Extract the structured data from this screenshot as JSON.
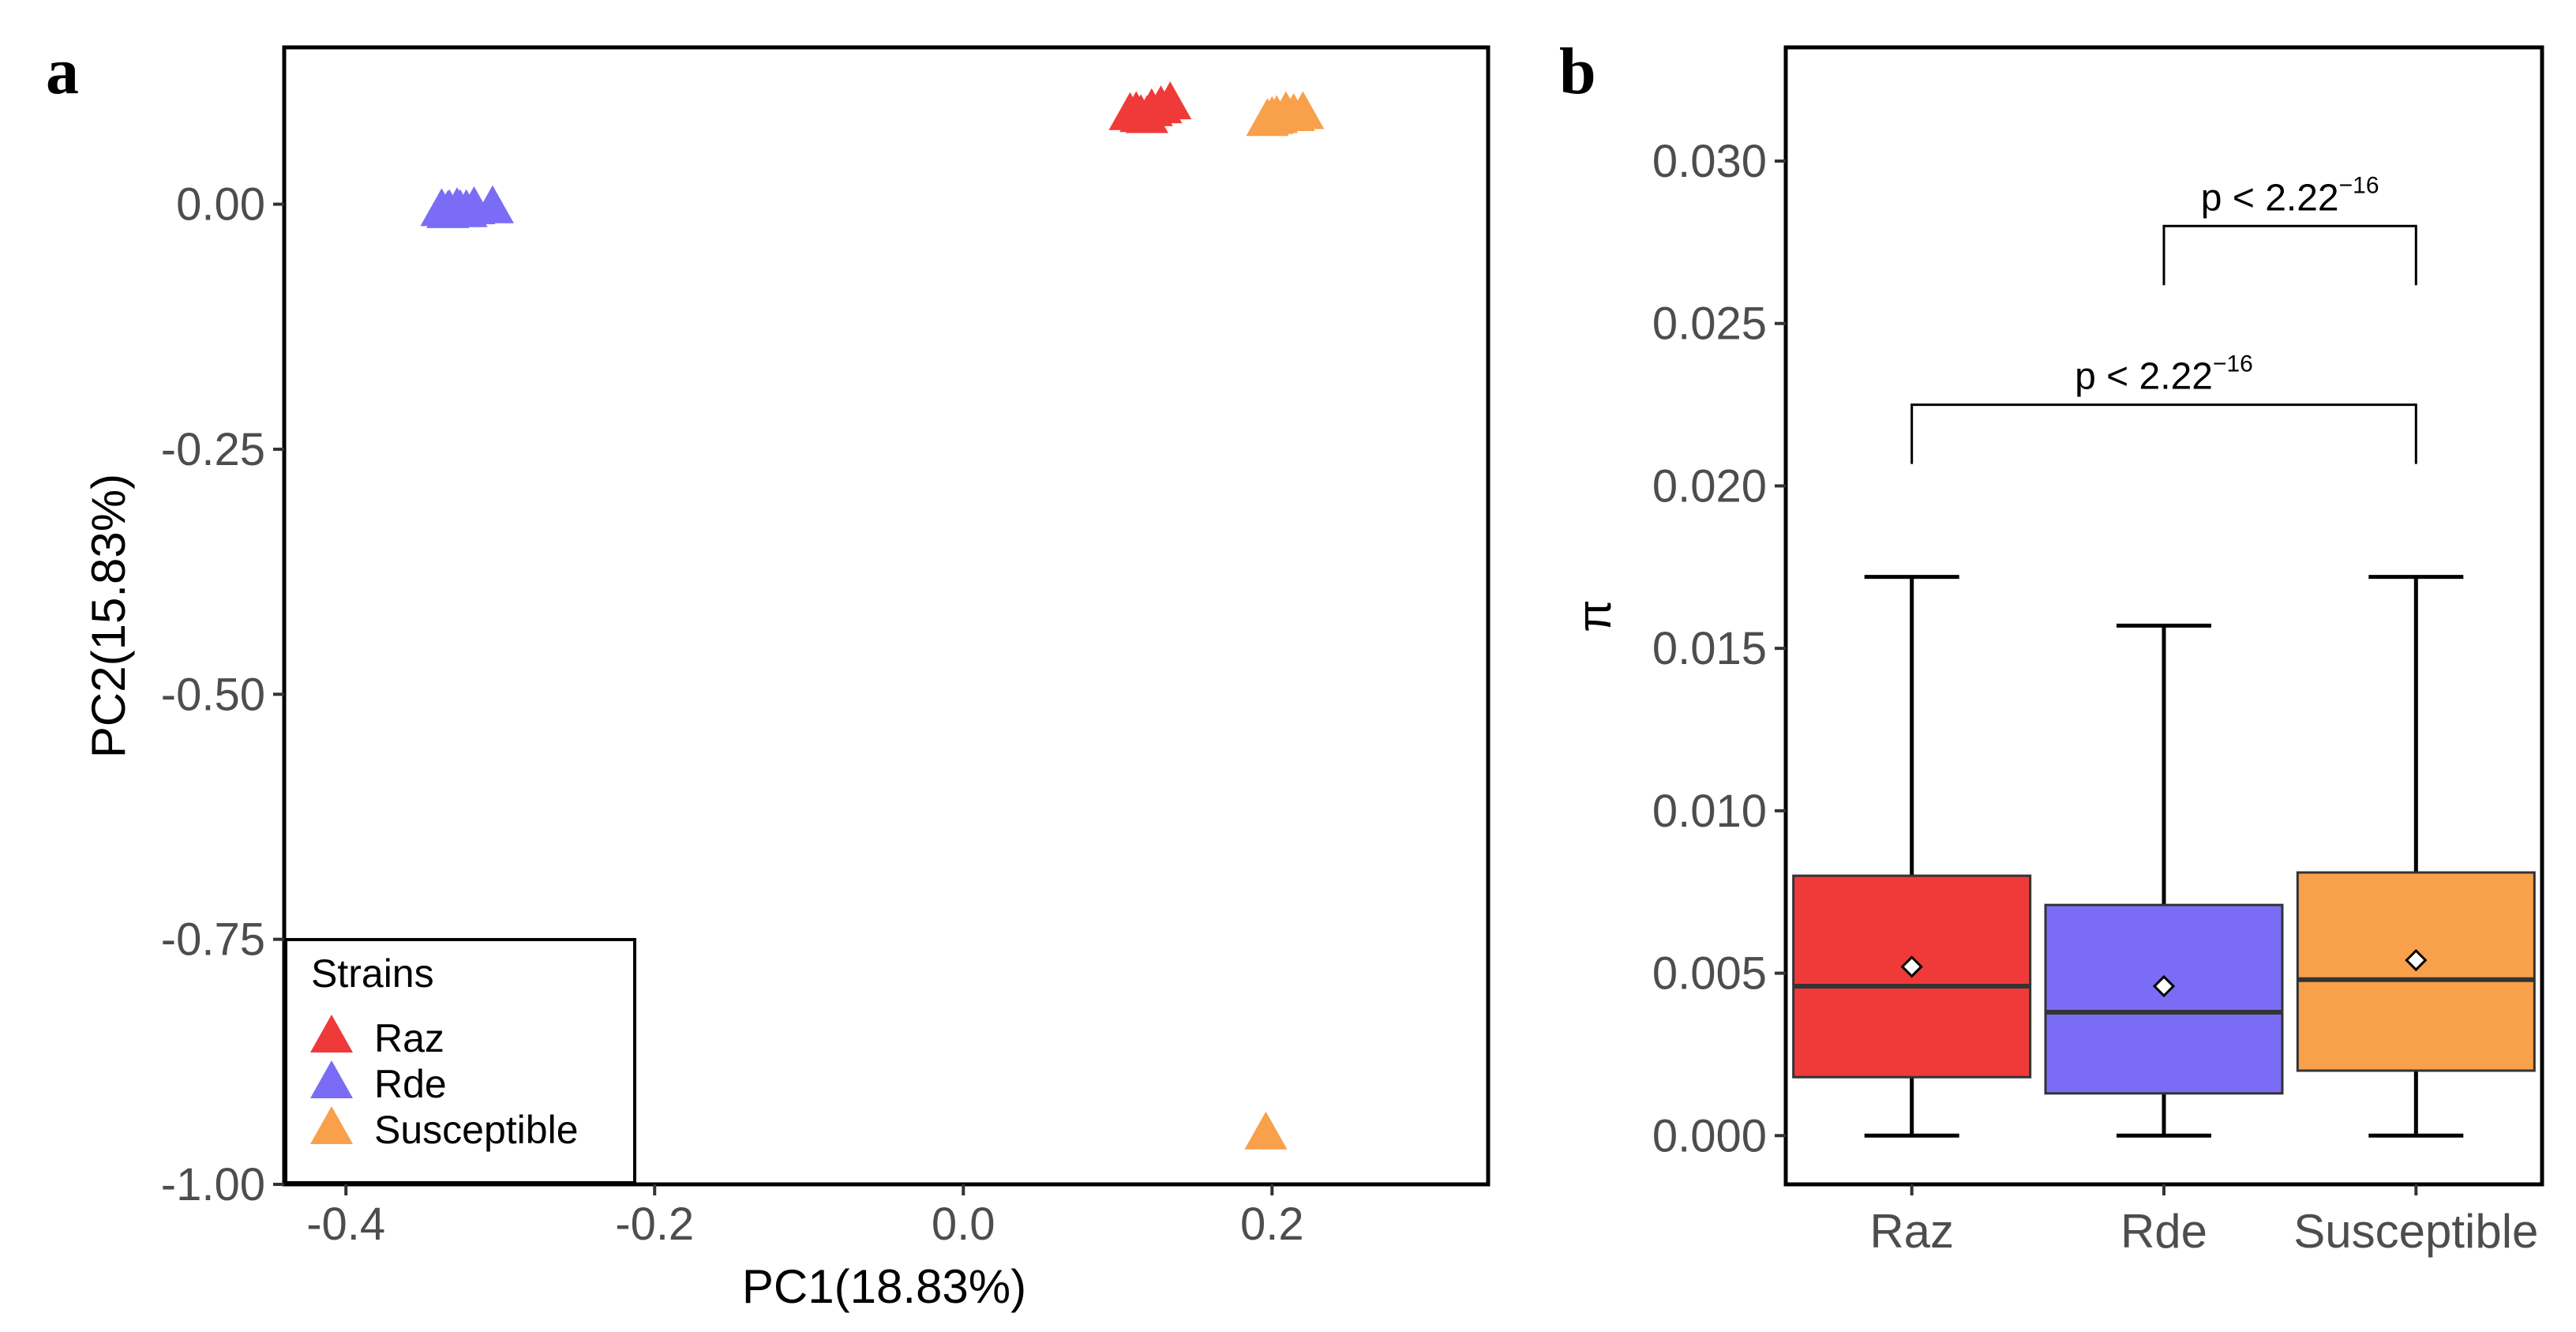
{
  "chart_data": [
    {
      "panel_label": "a",
      "type": "scatter",
      "xlabel": "PC1(18.83%)",
      "ylabel": "PC2(15.83%)",
      "xlim": [
        -0.44,
        0.34
      ],
      "ylim": [
        -1.0,
        0.16
      ],
      "xticks": [
        -0.4,
        -0.2,
        0.0,
        0.2
      ],
      "xtick_labels": [
        "-0.4",
        "-0.2",
        "0.0",
        "0.2"
      ],
      "yticks": [
        0.0,
        -0.25,
        -0.5,
        -0.75,
        -1.0
      ],
      "ytick_labels": [
        "0.00",
        "-0.25",
        "-0.50",
        "-0.75",
        "-1.00"
      ],
      "marker": "triangle",
      "legend": {
        "title": "Strains",
        "position": "bottom-left",
        "entries": [
          "Raz",
          "Rde",
          "Susceptible"
        ]
      },
      "series": [
        {
          "name": "Raz",
          "color": "#f03a3a",
          "points": [
            [
              0.108,
              0.093
            ],
            [
              0.115,
              0.091
            ],
            [
              0.122,
              0.097
            ],
            [
              0.128,
              0.1
            ],
            [
              0.134,
              0.104
            ],
            [
              0.119,
              0.09
            ],
            [
              0.112,
              0.094
            ]
          ]
        },
        {
          "name": "Rde",
          "color": "#7b6cf5",
          "points": [
            [
              -0.338,
              -0.005
            ],
            [
              -0.333,
              -0.006
            ],
            [
              -0.328,
              -0.004
            ],
            [
              -0.322,
              -0.006
            ],
            [
              -0.317,
              -0.003
            ],
            [
              -0.305,
              -0.002
            ],
            [
              -0.334,
              -0.007
            ],
            [
              -0.326,
              -0.006
            ]
          ]
        },
        {
          "name": "Susceptible",
          "color": "#f9a04a",
          "points": [
            [
              0.197,
              0.087
            ],
            [
              0.203,
              0.09
            ],
            [
              0.209,
              0.094
            ],
            [
              0.214,
              0.092
            ],
            [
              0.22,
              0.094
            ],
            [
              0.2,
              0.089
            ],
            [
              0.196,
              -0.947
            ]
          ]
        }
      ]
    },
    {
      "panel_label": "b",
      "type": "box",
      "ylabel": "π",
      "ylim": [
        -0.0015,
        0.0335
      ],
      "yticks": [
        0.0,
        0.005,
        0.01,
        0.015,
        0.02,
        0.025,
        0.03
      ],
      "ytick_labels": [
        "0.000",
        "0.005",
        "0.010",
        "0.015",
        "0.020",
        "0.025",
        "0.030"
      ],
      "categories": [
        "Raz",
        "Rde",
        "Susceptible"
      ],
      "boxes": [
        {
          "name": "Raz",
          "color": "#f03a3a",
          "min": 0.0,
          "q1": 0.0018,
          "median": 0.0046,
          "q3": 0.008,
          "max": 0.0172,
          "mean": 0.0052
        },
        {
          "name": "Rde",
          "color": "#7b6cf5",
          "min": 0.0,
          "q1": 0.0013,
          "median": 0.0038,
          "q3": 0.0071,
          "max": 0.0157,
          "mean": 0.0046
        },
        {
          "name": "Susceptible",
          "color": "#f9a04a",
          "min": 0.0,
          "q1": 0.002,
          "median": 0.0048,
          "q3": 0.0081,
          "max": 0.0172,
          "mean": 0.0054
        }
      ],
      "annotations": [
        {
          "from": "Rde",
          "to": "Susceptible",
          "text": "p < 2.22",
          "superscript": "−16",
          "y": 0.028
        },
        {
          "from": "Raz",
          "to": "Susceptible",
          "text": "p < 2.22",
          "superscript": "−16",
          "y": 0.0225
        }
      ]
    }
  ]
}
